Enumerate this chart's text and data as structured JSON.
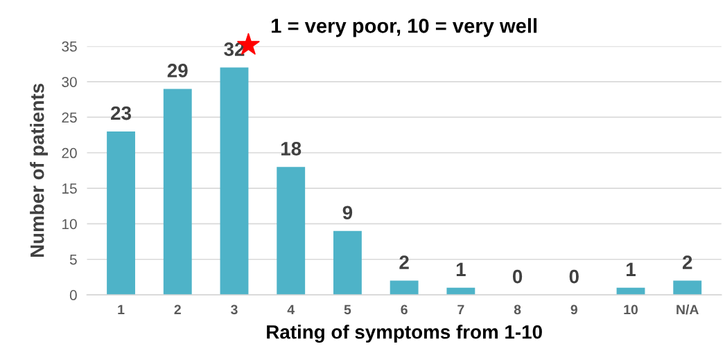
{
  "chart_data": {
    "type": "bar",
    "title": "1 = very poor, 10 = very well",
    "xlabel": "Rating of symptoms from 1-10",
    "ylabel": "Number of patients",
    "categories": [
      "1",
      "2",
      "3",
      "4",
      "5",
      "6",
      "7",
      "8",
      "9",
      "10",
      "N/A"
    ],
    "values": [
      23,
      29,
      32,
      18,
      9,
      2,
      1,
      0,
      0,
      1,
      2
    ],
    "color": "#4eb3c8",
    "ylim": [
      0,
      35
    ],
    "yticks": [
      0,
      5,
      10,
      15,
      20,
      25,
      30,
      35
    ],
    "grid": "y",
    "data_labels": true,
    "legend": false
  }
}
